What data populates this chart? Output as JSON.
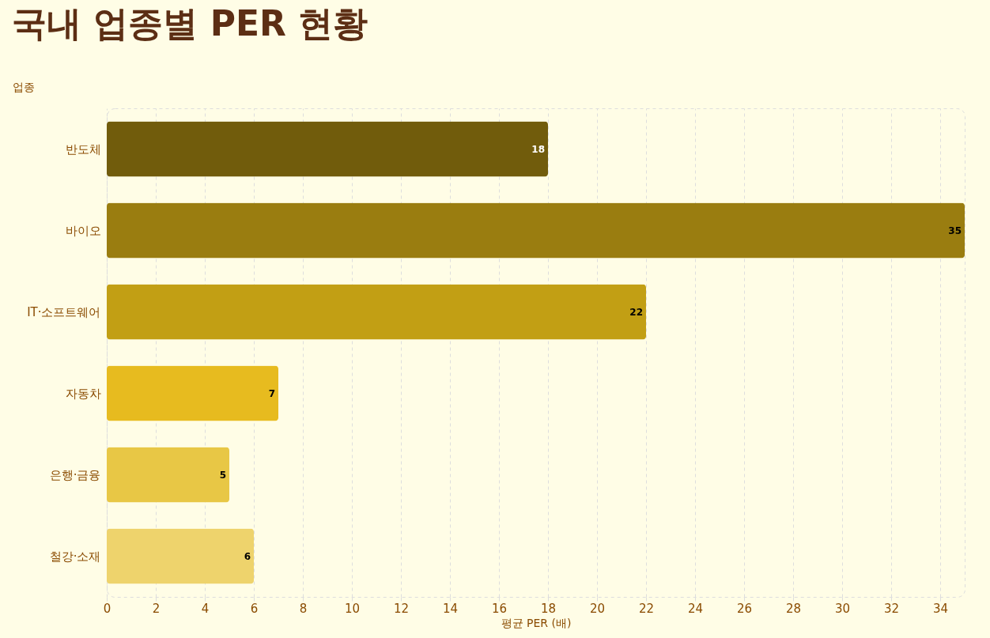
{
  "chart_data": {
    "type": "bar",
    "orientation": "horizontal",
    "title": "국내 업종별 PER 현황",
    "xlabel": "평균 PER (배)",
    "ylabel": "업종",
    "categories": [
      "반도체",
      "바이오",
      "IT·소프트웨어",
      "자동차",
      "은행·금융",
      "철강·소재"
    ],
    "values": [
      18,
      35,
      22,
      7,
      5,
      6
    ],
    "colors": [
      "#715c0c",
      "#9a7d10",
      "#c29f14",
      "#e7bb1f",
      "#e8c745",
      "#eed36c"
    ],
    "xlim": [
      0,
      35
    ],
    "xticks": [
      0,
      2,
      4,
      6,
      8,
      10,
      12,
      14,
      16,
      18,
      20,
      22,
      24,
      26,
      28,
      30,
      32,
      34
    ],
    "grid": "x",
    "data_labels": true
  }
}
